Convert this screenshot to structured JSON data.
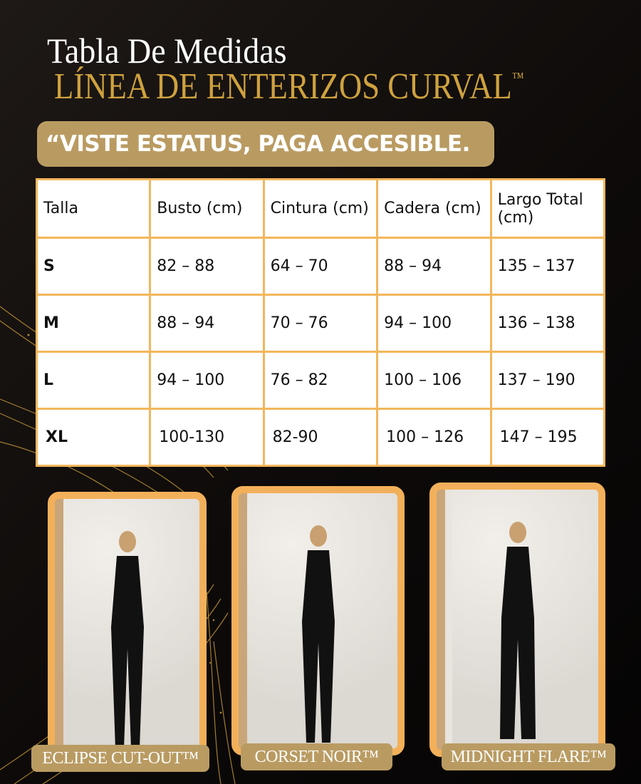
{
  "header": {
    "title": "Tabla De Medidas",
    "subtitle": "LÍNEA DE ENTERIZOS CURVAL",
    "trademark": "™"
  },
  "slogan": "“VISTE ESTATUS, PAGA ACCESIBLE.",
  "table": {
    "headers": [
      "Talla",
      "Busto (cm)",
      "Cintura (cm)",
      "Cadera (cm)",
      "Largo Total (cm)"
    ],
    "rows": [
      [
        "S",
        "82 – 88",
        "64 – 70",
        "88 – 94",
        "135 – 137"
      ],
      [
        "M",
        "88 – 94",
        "70 – 76",
        "94 – 100",
        "136 – 138"
      ],
      [
        "L",
        "94 – 100",
        "76 – 82",
        "100 – 106",
        "137 – 190"
      ],
      [
        "XL",
        "100-130",
        "82-90",
        "100 – 126",
        "147 – 195"
      ]
    ]
  },
  "products": [
    {
      "name": "ECLIPSE CUT-OUT™"
    },
    {
      "name": "CORSET NOIR™"
    },
    {
      "name": "MIDNIGHT FLARE™"
    }
  ],
  "colors": {
    "gold_text": "#cfa23e",
    "label_bg": "#b99b62",
    "table_border": "#f3b65c",
    "frame": "#f3b05a"
  }
}
